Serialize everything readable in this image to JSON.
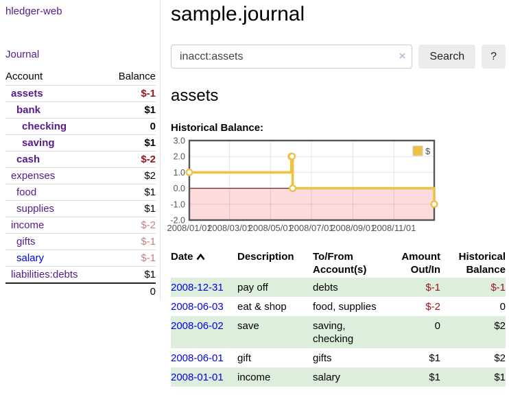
{
  "app": {
    "title": "hledger-web",
    "nav_journal": "Journal"
  },
  "colors": {
    "link_purple": "#551a8b",
    "link_blue": "#0000e8",
    "negative_strong": "#96161b",
    "negative_soft": "#c08181",
    "row_stripe_green": "#ddeedd",
    "chart_line": "#edc240",
    "chart_negative_fill": "#fbdbdb",
    "chart_zero_line": "#8b1a1a",
    "chart_border": "#545454"
  },
  "sidebar": {
    "columns": {
      "account": "Account",
      "balance": "Balance"
    },
    "accounts": [
      {
        "name": "assets",
        "indent": 1,
        "bold": true,
        "balance": "$-1",
        "balance_style": "neg-strong",
        "link": "purple"
      },
      {
        "name": "bank",
        "indent": 2,
        "bold": true,
        "balance": "$1",
        "balance_style": "pos",
        "link": "purple"
      },
      {
        "name": "checking",
        "indent": 3,
        "bold": true,
        "balance": "0",
        "balance_style": "pos",
        "link": "purple"
      },
      {
        "name": "saving",
        "indent": 3,
        "bold": true,
        "balance": "$1",
        "balance_style": "pos",
        "link": "purple"
      },
      {
        "name": "cash",
        "indent": 2,
        "bold": true,
        "balance": "$-2",
        "balance_style": "neg-strong",
        "link": "purple"
      },
      {
        "name": "expenses",
        "indent": 1,
        "bold": false,
        "balance": "$2",
        "balance_style": "pos",
        "link": "purple"
      },
      {
        "name": "food",
        "indent": 2,
        "bold": false,
        "balance": "$1",
        "balance_style": "pos",
        "link": "purple"
      },
      {
        "name": "supplies",
        "indent": 2,
        "bold": false,
        "balance": "$1",
        "balance_style": "pos",
        "link": "purple"
      },
      {
        "name": "income",
        "indent": 1,
        "bold": false,
        "balance": "$-2",
        "balance_style": "neg-soft",
        "link": "purple"
      },
      {
        "name": "gifts",
        "indent": 2,
        "bold": false,
        "balance": "$-1",
        "balance_style": "neg-soft",
        "link": "purple"
      },
      {
        "name": "salary",
        "indent": 2,
        "bold": false,
        "balance": "$-1",
        "balance_style": "neg-soft",
        "link": "blue"
      },
      {
        "name": "liabilities:debts",
        "indent": 1,
        "bold": false,
        "balance": "$1",
        "balance_style": "pos",
        "link": "purple"
      }
    ],
    "total": "0"
  },
  "header": {
    "title": "sample.journal"
  },
  "search": {
    "value": "inacct:assets",
    "clear_icon": "×",
    "button_label": "Search",
    "help_label": "?"
  },
  "account_page": {
    "heading": "assets",
    "chart_title": "Historical Balance:"
  },
  "chart_data": {
    "type": "line",
    "step": true,
    "title": "Historical Balance",
    "series": [
      {
        "name": "$",
        "color": "#edc240",
        "points": [
          [
            "2008-01-01",
            1
          ],
          [
            "2008-06-01",
            2
          ],
          [
            "2008-06-02",
            2
          ],
          [
            "2008-06-03",
            0
          ],
          [
            "2008-12-31",
            -1
          ]
        ]
      }
    ],
    "x_ticks": [
      "2008/01/01",
      "2008/03/01",
      "2008/05/01",
      "2008/07/01",
      "2008/09/01",
      "2008/11/01"
    ],
    "y_ticks": [
      3.0,
      2.0,
      1.0,
      0.0,
      -1.0,
      -2.0
    ],
    "ylim": [
      -2,
      3
    ],
    "grid": true,
    "negative_region_shaded": true,
    "legend": {
      "label": "$",
      "position": "top-right"
    }
  },
  "register": {
    "columns": [
      {
        "label": "Date",
        "sortable": true
      },
      {
        "label": "Description"
      },
      {
        "label": "To/From Account(s)"
      },
      {
        "label": "Amount Out/In",
        "align": "right"
      },
      {
        "label": "Historical Balance",
        "align": "right"
      }
    ],
    "rows": [
      {
        "date": "2008-12-31",
        "description": "pay off",
        "accounts": "debts",
        "amount": "$-1",
        "amount_neg": true,
        "balance": "$-1",
        "balance_neg": true
      },
      {
        "date": "2008-06-03",
        "description": "eat & shop",
        "accounts": "food, supplies",
        "amount": "$-2",
        "amount_neg": true,
        "balance": "0",
        "balance_neg": false
      },
      {
        "date": "2008-06-02",
        "description": "save",
        "accounts": "saving, checking",
        "amount": "0",
        "amount_neg": false,
        "balance": "$2",
        "balance_neg": false
      },
      {
        "date": "2008-06-01",
        "description": "gift",
        "accounts": "gifts",
        "amount": "$1",
        "amount_neg": false,
        "balance": "$2",
        "balance_neg": false
      },
      {
        "date": "2008-01-01",
        "description": "income",
        "accounts": "salary",
        "amount": "$1",
        "amount_neg": false,
        "balance": "$1",
        "balance_neg": false
      }
    ]
  }
}
